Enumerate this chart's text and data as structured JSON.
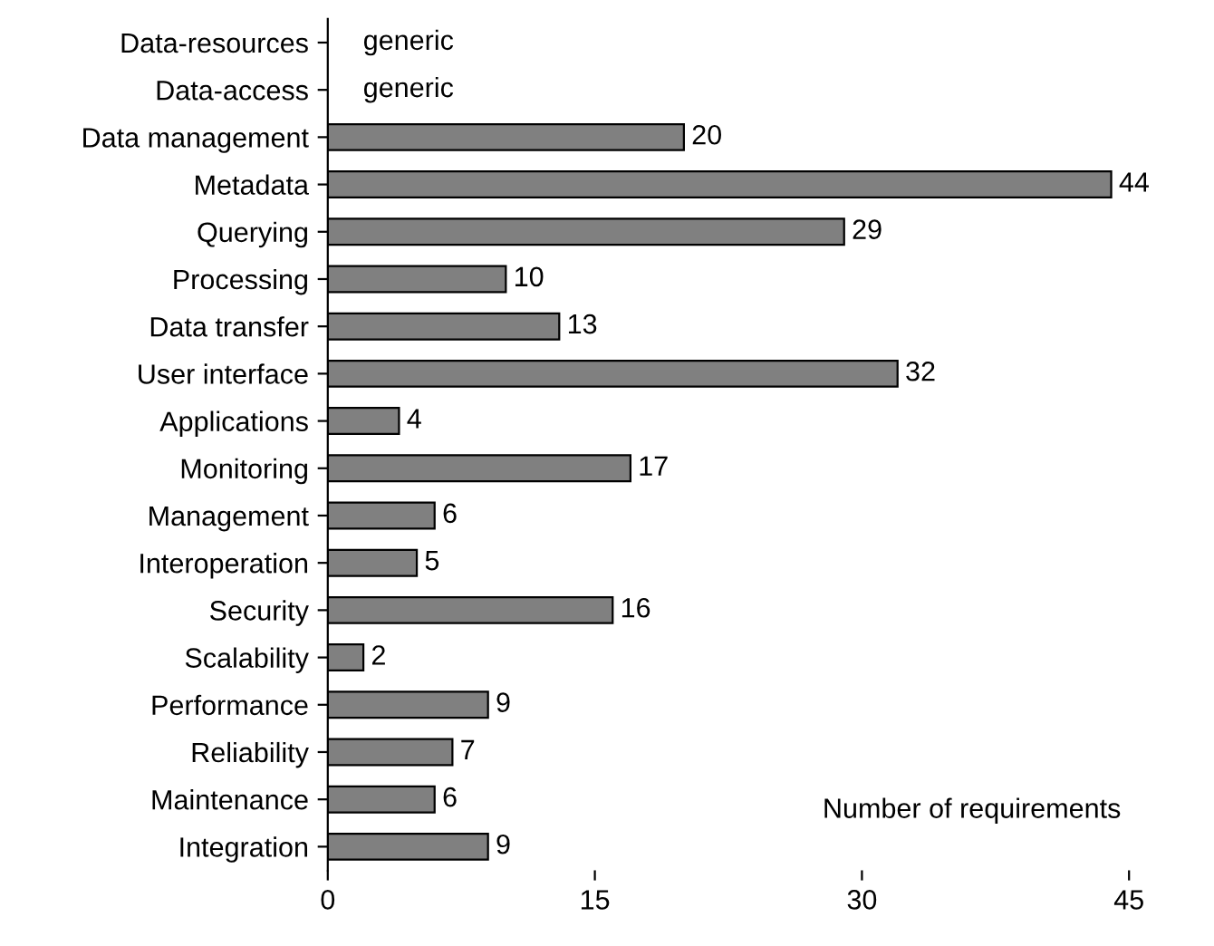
{
  "chart_data": {
    "type": "bar",
    "orientation": "horizontal",
    "categories": [
      "Data-resources",
      "Data-access",
      "Data management",
      "Metadata",
      "Querying",
      "Processing",
      "Data transfer",
      "User interface",
      "Applications",
      "Monitoring",
      "Management",
      "Interoperation",
      "Security",
      "Scalability",
      "Performance",
      "Reliability",
      "Maintenance",
      "Integration"
    ],
    "values": [
      null,
      null,
      20,
      44,
      29,
      10,
      13,
      32,
      4,
      17,
      6,
      5,
      16,
      2,
      9,
      7,
      6,
      9
    ],
    "value_labels": [
      "generic",
      "generic",
      "20",
      "44",
      "29",
      "10",
      "13",
      "32",
      "4",
      "17",
      "6",
      "5",
      "16",
      "2",
      "9",
      "7",
      "6",
      "9"
    ],
    "color": "#808080",
    "xlim": [
      0,
      45
    ],
    "xticks": [
      0,
      15,
      30,
      45
    ],
    "grid": false,
    "annotations": [
      "Number of requirements"
    ]
  }
}
